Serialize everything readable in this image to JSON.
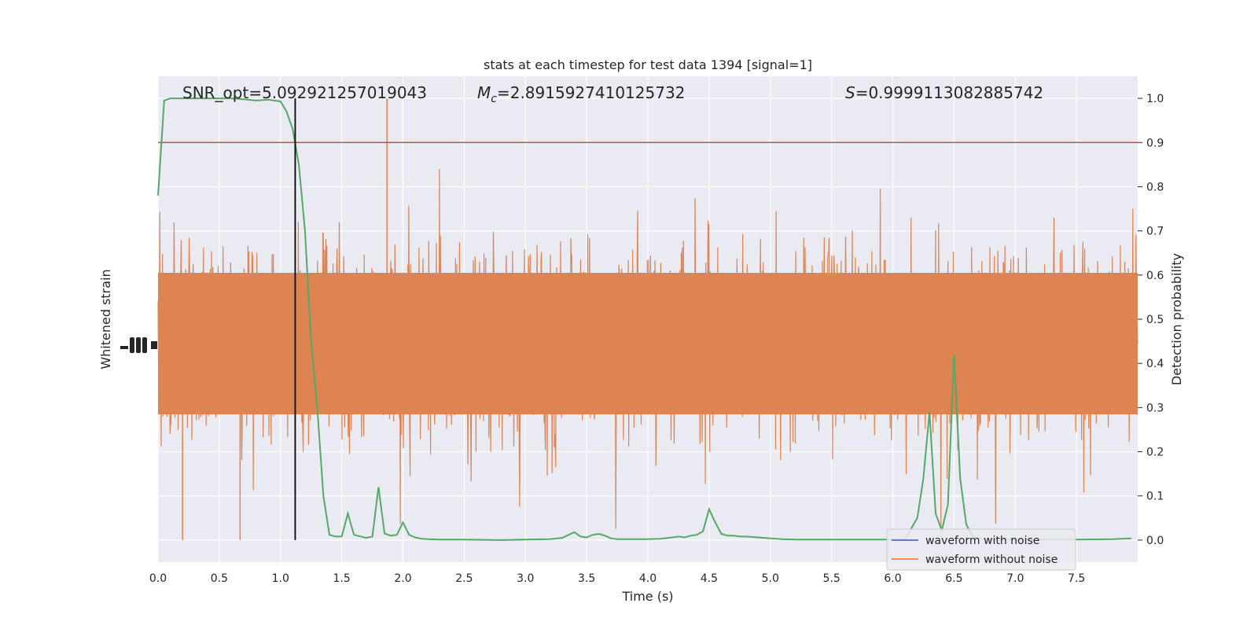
{
  "chart_data": {
    "type": "line",
    "title": "stats at each timestep for test data 1394 [signal=1]",
    "xlabel": "Time (s)",
    "ylabel_left": "Whitened strain",
    "ylabel_right": "Detection probability",
    "xlim": [
      0,
      8
    ],
    "ylim_right": [
      -0.05,
      1.05
    ],
    "x_ticks": [
      "0.0",
      "0.5",
      "1.0",
      "1.5",
      "2.0",
      "2.5",
      "3.0",
      "3.5",
      "4.0",
      "4.5",
      "5.0",
      "5.5",
      "6.0",
      "6.5",
      "7.0",
      "7.5"
    ],
    "y_ticks_right": [
      "0.0",
      "0.1",
      "0.2",
      "0.3",
      "0.4",
      "0.5",
      "0.6",
      "0.7",
      "0.8",
      "0.9",
      "1.0"
    ],
    "grid": true,
    "legend_position": "bottom-right",
    "annotations": {
      "snr": "SNR_opt=5.092921257019043",
      "mc_symbol": "M",
      "mc_sub": "c",
      "mc_value": "=2.8915927410125732",
      "s_symbol": "S",
      "s_value": "=0.9999113082885742"
    },
    "threshold": 0.9,
    "marker_time": 1.12,
    "series": [
      {
        "name": "waveform with noise",
        "color": "#4c72b0"
      },
      {
        "name": "waveform without noise",
        "color": "#dd8452"
      }
    ],
    "probability_line": {
      "color": "#55a868",
      "x": [
        0.0,
        0.05,
        0.1,
        0.2,
        0.3,
        0.4,
        0.5,
        0.6,
        0.7,
        0.8,
        0.9,
        1.0,
        1.05,
        1.1,
        1.15,
        1.2,
        1.25,
        1.3,
        1.35,
        1.4,
        1.45,
        1.5,
        1.55,
        1.6,
        1.7,
        1.75,
        1.8,
        1.85,
        1.9,
        1.95,
        2.0,
        2.05,
        2.1,
        2.15,
        2.2,
        2.3,
        2.5,
        2.8,
        3.0,
        3.2,
        3.3,
        3.4,
        3.45,
        3.5,
        3.55,
        3.6,
        3.65,
        3.7,
        3.75,
        3.8,
        4.0,
        4.1,
        4.2,
        4.25,
        4.3,
        4.35,
        4.4,
        4.45,
        4.5,
        4.55,
        4.6,
        4.65,
        4.7,
        4.75,
        4.8,
        4.9,
        5.0,
        5.1,
        5.2,
        5.5,
        6.0,
        6.1,
        6.2,
        6.25,
        6.3,
        6.35,
        6.4,
        6.45,
        6.5,
        6.55,
        6.6,
        6.65,
        6.7,
        6.75,
        6.8,
        7.0,
        7.5,
        7.8,
        7.95
      ],
      "y": [
        0.78,
        0.995,
        1.0,
        1.0,
        1.0,
        1.0,
        1.0,
        1.0,
        0.998,
        0.995,
        0.997,
        0.993,
        0.97,
        0.93,
        0.85,
        0.7,
        0.45,
        0.3,
        0.1,
        0.012,
        0.008,
        0.008,
        0.06,
        0.012,
        0.005,
        0.008,
        0.12,
        0.015,
        0.01,
        0.012,
        0.04,
        0.012,
        0.006,
        0.003,
        0.002,
        0.001,
        0.001,
        0.0,
        0.001,
        0.002,
        0.005,
        0.018,
        0.008,
        0.006,
        0.012,
        0.014,
        0.01,
        0.004,
        0.002,
        0.002,
        0.002,
        0.003,
        0.006,
        0.008,
        0.006,
        0.01,
        0.012,
        0.02,
        0.07,
        0.04,
        0.014,
        0.01,
        0.01,
        0.008,
        0.008,
        0.006,
        0.004,
        0.002,
        0.001,
        0.001,
        0.001,
        0.002,
        0.05,
        0.14,
        0.29,
        0.06,
        0.022,
        0.08,
        0.42,
        0.14,
        0.035,
        0.01,
        0.003,
        0.002,
        0.001,
        0.001,
        0.001,
        0.002,
        0.004
      ]
    }
  }
}
